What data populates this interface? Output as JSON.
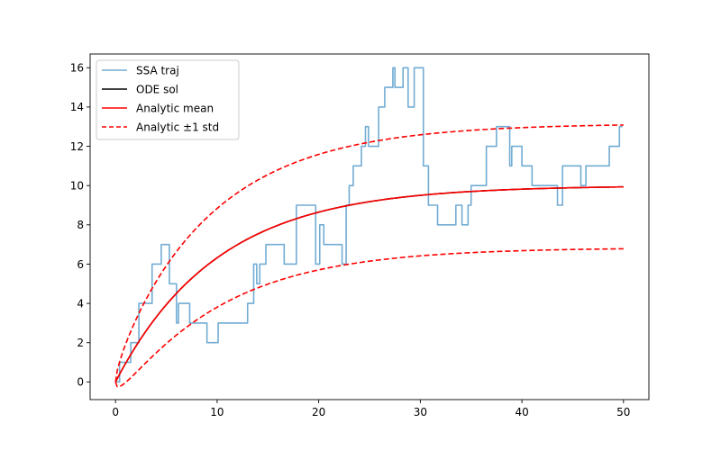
{
  "chart_data": {
    "type": "line",
    "title": "",
    "xlabel": "",
    "ylabel": "",
    "xlim": [
      -2.5,
      52.5
    ],
    "ylim": [
      -0.9,
      16.7
    ],
    "x_ticks": [
      0,
      10,
      20,
      30,
      40,
      50
    ],
    "y_ticks": [
      0,
      2,
      4,
      6,
      8,
      10,
      12,
      14,
      16
    ],
    "grid": false,
    "legend_position": "top-left",
    "legend": [
      {
        "label": "SSA traj",
        "color": "#72acd3",
        "style": "solid"
      },
      {
        "label": "ODE sol",
        "color": "#000000",
        "style": "solid"
      },
      {
        "label": "Analytic mean",
        "color": "#ff0000",
        "style": "solid"
      },
      {
        "label": "Analytic ±1 std",
        "color": "#ff0000",
        "style": "dashed"
      }
    ],
    "series": [
      {
        "name": "SSA traj",
        "color": "#72acd3",
        "step": true,
        "x": [
          0,
          0.4,
          0.9,
          1.5,
          2.3,
          3.6,
          4.5,
          5.3,
          6.0,
          6.2,
          7.3,
          9.0,
          10.1,
          13.0,
          13.6,
          13.9,
          14.2,
          14.8,
          15.2,
          16.6,
          17.8,
          18.4,
          19.7,
          20.1,
          20.5,
          21.6,
          22.3,
          22.7,
          23.0,
          23.4,
          24.2,
          24.6,
          24.9,
          25.9,
          26.5,
          27.3,
          27.5,
          28.3,
          28.8,
          29.4,
          30.3,
          30.8,
          31.7,
          33.0,
          33.5,
          34.1,
          34.7,
          35.0,
          35.4,
          36.5,
          37.5,
          38.8,
          39.0,
          40.0,
          41.0,
          43.1,
          43.5,
          44.0,
          45.8,
          46.3,
          47.7,
          48.6,
          49.3,
          49.6
        ],
        "y": [
          0,
          1,
          1,
          2,
          4,
          6,
          7,
          5,
          3,
          4,
          3,
          2,
          3,
          4,
          6,
          5,
          6,
          7,
          7,
          6,
          9,
          9,
          6,
          8,
          7,
          7,
          6,
          9,
          10,
          11,
          12,
          13,
          12,
          14,
          15,
          16,
          15,
          16,
          14,
          16,
          11,
          9,
          8,
          8,
          9,
          8,
          9,
          10,
          10,
          12,
          13,
          11,
          12,
          11,
          10,
          10,
          9,
          11,
          10,
          11,
          11,
          12,
          12,
          13
        ]
      },
      {
        "name": "ODE sol",
        "color": "#000000",
        "function": "10*(1-exp(-t/10))",
        "x_range": [
          0,
          50
        ]
      },
      {
        "name": "Analytic mean",
        "color": "#ff0000",
        "function": "10*(1-exp(-t/10))",
        "x_range": [
          0,
          50
        ]
      },
      {
        "name": "Analytic +1 std",
        "color": "#ff0000",
        "dashed": true,
        "function": "m + sqrt(m)",
        "x_range": [
          0,
          50
        ]
      },
      {
        "name": "Analytic -1 std",
        "color": "#ff0000",
        "dashed": true,
        "function": "m - sqrt(m)",
        "x_range": [
          0,
          50
        ]
      }
    ]
  }
}
